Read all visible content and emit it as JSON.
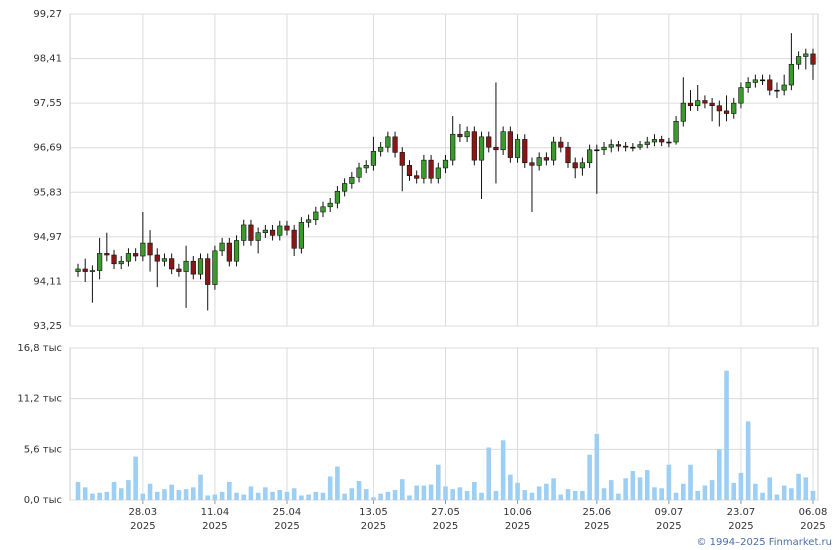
{
  "chart_data": {
    "type": "candlestick",
    "x": [
      "2025-03-17",
      "2025-03-18",
      "2025-03-19",
      "2025-03-20",
      "2025-03-21",
      "2025-03-24",
      "2025-03-25",
      "2025-03-26",
      "2025-03-27",
      "2025-03-28",
      "2025-03-31",
      "2025-04-01",
      "2025-04-02",
      "2025-04-03",
      "2025-04-04",
      "2025-04-07",
      "2025-04-08",
      "2025-04-09",
      "2025-04-10",
      "2025-04-11",
      "2025-04-14",
      "2025-04-15",
      "2025-04-16",
      "2025-04-17",
      "2025-04-18",
      "2025-04-21",
      "2025-04-22",
      "2025-04-23",
      "2025-04-24",
      "2025-04-25",
      "2025-04-28",
      "2025-04-29",
      "2025-04-30",
      "2025-05-01",
      "2025-05-02",
      "2025-05-05",
      "2025-05-06",
      "2025-05-07",
      "2025-05-08",
      "2025-05-09",
      "2025-05-12",
      "2025-05-13",
      "2025-05-14",
      "2025-05-15",
      "2025-05-16",
      "2025-05-19",
      "2025-05-20",
      "2025-05-21",
      "2025-05-22",
      "2025-05-23",
      "2025-05-26",
      "2025-05-27",
      "2025-05-28",
      "2025-05-29",
      "2025-05-30",
      "2025-06-02",
      "2025-06-03",
      "2025-06-04",
      "2025-06-05",
      "2025-06-06",
      "2025-06-09",
      "2025-06-10",
      "2025-06-11",
      "2025-06-12",
      "2025-06-13",
      "2025-06-16",
      "2025-06-17",
      "2025-06-18",
      "2025-06-19",
      "2025-06-20",
      "2025-06-23",
      "2025-06-24",
      "2025-06-25",
      "2025-06-26",
      "2025-06-27",
      "2025-06-30",
      "2025-07-01",
      "2025-07-02",
      "2025-07-03",
      "2025-07-04",
      "2025-07-07",
      "2025-07-08",
      "2025-07-09",
      "2025-07-10",
      "2025-07-11",
      "2025-07-14",
      "2025-07-15",
      "2025-07-16",
      "2025-07-17",
      "2025-07-18",
      "2025-07-21",
      "2025-07-22",
      "2025-07-23",
      "2025-07-24",
      "2025-07-25",
      "2025-07-28",
      "2025-07-29",
      "2025-07-30",
      "2025-07-31",
      "2025-08-01",
      "2025-08-04",
      "2025-08-05",
      "2025-08-06"
    ],
    "open": [
      94.3,
      94.35,
      94.3,
      94.32,
      94.65,
      94.62,
      94.45,
      94.5,
      94.65,
      94.6,
      94.85,
      94.62,
      94.5,
      94.55,
      94.35,
      94.3,
      94.5,
      94.25,
      94.55,
      94.05,
      94.7,
      94.85,
      94.5,
      94.9,
      95.2,
      94.9,
      95.05,
      95.1,
      95.0,
      95.18,
      95.1,
      94.75,
      95.25,
      95.3,
      95.45,
      95.55,
      95.62,
      95.85,
      96.0,
      96.12,
      96.3,
      96.35,
      96.62,
      96.7,
      96.9,
      96.6,
      96.35,
      96.15,
      96.1,
      96.45,
      96.1,
      96.3,
      96.45,
      96.95,
      96.9,
      97.0,
      96.45,
      96.9,
      96.7,
      96.65,
      97.0,
      96.5,
      96.85,
      96.4,
      96.35,
      96.5,
      96.45,
      96.8,
      96.7,
      96.4,
      96.3,
      96.4,
      96.65,
      96.65,
      96.7,
      96.75,
      96.72,
      96.7,
      96.7,
      96.75,
      96.8,
      96.85,
      96.8,
      96.8,
      97.2,
      97.55,
      97.5,
      97.6,
      97.55,
      97.5,
      97.4,
      97.35,
      97.55,
      97.85,
      97.95,
      98.0,
      98.0,
      97.8,
      97.8,
      97.9,
      98.3,
      98.45,
      98.5
    ],
    "high": [
      94.45,
      94.55,
      94.42,
      94.95,
      95.05,
      94.72,
      94.6,
      94.75,
      94.75,
      95.45,
      95.1,
      94.75,
      94.65,
      94.65,
      94.45,
      94.8,
      94.6,
      94.65,
      94.65,
      94.8,
      94.95,
      94.95,
      95.0,
      95.3,
      95.3,
      95.15,
      95.2,
      95.2,
      95.28,
      95.28,
      95.2,
      95.35,
      95.4,
      95.55,
      95.65,
      95.72,
      95.95,
      96.1,
      96.22,
      96.4,
      96.45,
      96.9,
      96.8,
      97.0,
      97.0,
      96.7,
      96.45,
      96.25,
      96.55,
      96.55,
      96.4,
      96.55,
      97.3,
      97.15,
      97.1,
      97.1,
      97.0,
      97.0,
      97.95,
      97.1,
      97.1,
      96.95,
      96.95,
      96.5,
      96.6,
      96.6,
      96.9,
      96.9,
      96.8,
      96.5,
      96.5,
      96.75,
      96.75,
      96.8,
      96.85,
      96.82,
      96.8,
      96.78,
      96.82,
      96.9,
      96.95,
      96.92,
      96.88,
      97.3,
      98.05,
      97.8,
      97.9,
      97.7,
      97.65,
      97.6,
      97.7,
      97.65,
      97.95,
      98.05,
      98.1,
      98.1,
      98.1,
      97.95,
      98.1,
      98.9,
      98.55,
      98.6,
      98.6
    ],
    "low": [
      94.2,
      94.1,
      93.7,
      94.15,
      94.5,
      94.35,
      94.35,
      94.4,
      94.5,
      94.5,
      94.3,
      94.0,
      94.4,
      94.25,
      94.2,
      93.6,
      94.15,
      94.15,
      93.55,
      93.95,
      94.6,
      94.4,
      94.4,
      94.8,
      94.8,
      94.65,
      94.95,
      94.9,
      94.9,
      95.0,
      94.6,
      94.65,
      95.15,
      95.2,
      95.35,
      95.45,
      95.52,
      95.75,
      95.9,
      96.02,
      96.2,
      96.25,
      96.52,
      96.6,
      96.5,
      95.85,
      96.05,
      96.0,
      96.0,
      96.0,
      96.0,
      96.2,
      96.35,
      96.8,
      96.8,
      96.35,
      95.7,
      96.6,
      96.0,
      96.55,
      96.4,
      96.4,
      96.3,
      95.45,
      96.25,
      96.35,
      96.35,
      96.6,
      96.3,
      96.1,
      96.15,
      96.3,
      95.8,
      96.55,
      96.6,
      96.62,
      96.62,
      96.62,
      96.65,
      96.68,
      96.72,
      96.72,
      96.7,
      96.75,
      97.1,
      97.4,
      97.4,
      97.45,
      97.2,
      97.1,
      97.2,
      97.25,
      97.45,
      97.75,
      97.85,
      97.9,
      97.7,
      97.65,
      97.7,
      97.8,
      98.2,
      98.2,
      98.0
    ],
    "close": [
      94.35,
      94.3,
      94.32,
      94.65,
      94.62,
      94.45,
      94.5,
      94.65,
      94.6,
      94.85,
      94.62,
      94.5,
      94.55,
      94.35,
      94.3,
      94.5,
      94.25,
      94.55,
      94.05,
      94.7,
      94.85,
      94.5,
      94.9,
      95.2,
      94.9,
      95.05,
      95.1,
      95.0,
      95.18,
      95.1,
      94.75,
      95.25,
      95.3,
      95.45,
      95.55,
      95.62,
      95.85,
      96.0,
      96.12,
      96.3,
      96.35,
      96.62,
      96.7,
      96.9,
      96.6,
      96.35,
      96.15,
      96.1,
      96.45,
      96.1,
      96.3,
      96.45,
      96.95,
      96.9,
      97.0,
      96.45,
      96.9,
      96.7,
      96.65,
      97.0,
      96.5,
      96.85,
      96.4,
      96.35,
      96.5,
      96.45,
      96.8,
      96.7,
      96.4,
      96.3,
      96.4,
      96.65,
      96.65,
      96.7,
      96.75,
      96.72,
      96.7,
      96.7,
      96.75,
      96.8,
      96.85,
      96.8,
      96.8,
      97.2,
      97.55,
      97.5,
      97.6,
      97.55,
      97.5,
      97.4,
      97.35,
      97.55,
      97.85,
      97.95,
      98.0,
      98.0,
      97.8,
      97.8,
      97.9,
      98.3,
      98.45,
      98.5,
      98.3
    ],
    "volume": [
      2.0,
      1.4,
      0.7,
      0.8,
      0.9,
      2.0,
      1.3,
      2.2,
      4.8,
      0.7,
      1.8,
      0.9,
      1.2,
      1.7,
      1.1,
      1.2,
      1.4,
      2.8,
      0.5,
      0.6,
      0.9,
      2.0,
      0.8,
      0.6,
      1.5,
      0.8,
      1.4,
      0.9,
      1.1,
      0.9,
      1.3,
      0.5,
      0.6,
      0.9,
      0.8,
      2.6,
      3.7,
      0.7,
      1.3,
      2.1,
      1.2,
      0.3,
      0.7,
      0.9,
      1.1,
      2.3,
      0.5,
      1.6,
      1.6,
      1.7,
      3.9,
      1.5,
      1.2,
      1.4,
      1.0,
      2.0,
      0.8,
      5.8,
      1.0,
      6.6,
      2.8,
      1.9,
      1.1,
      0.8,
      1.5,
      1.8,
      2.4,
      0.6,
      1.2,
      1.0,
      1.0,
      5.0,
      7.3,
      1.3,
      2.2,
      0.7,
      2.4,
      3.2,
      2.5,
      3.3,
      1.4,
      1.3,
      3.9,
      0.8,
      1.8,
      3.9,
      1.0,
      1.6,
      2.2,
      5.6,
      14.3,
      1.9,
      3.0,
      8.7,
      1.8,
      0.8,
      2.5,
      0.6,
      1.6,
      1.3,
      2.9,
      2.5,
      1.0
    ],
    "up_color": "#3a9a2c",
    "down_color": "#8b1616",
    "volume_color": "#9dcff4",
    "ylim": [
      93.25,
      99.27
    ],
    "yticks": [
      {
        "value": 93.25,
        "label": "93,25"
      },
      {
        "value": 94.11,
        "label": "94,11"
      },
      {
        "value": 94.97,
        "label": "94,97"
      },
      {
        "value": 95.83,
        "label": "95,83"
      },
      {
        "value": 96.69,
        "label": "96,69"
      },
      {
        "value": 97.55,
        "label": "97,55"
      },
      {
        "value": 98.41,
        "label": "98,41"
      },
      {
        "value": 99.27,
        "label": "99,27"
      }
    ],
    "volume_lim": [
      0,
      16.8
    ],
    "volume_ticks": [
      {
        "value": 0,
        "label": "0,0 тыс"
      },
      {
        "value": 5.6,
        "label": "5,6 тыс"
      },
      {
        "value": 11.2,
        "label": "11,2 тыс"
      },
      {
        "value": 16.8,
        "label": "16,8 тыс"
      }
    ],
    "xticks": [
      {
        "value": "2025-03-28",
        "label": [
          "28.03",
          "2025"
        ]
      },
      {
        "value": "2025-04-11",
        "label": [
          "11.04",
          "2025"
        ]
      },
      {
        "value": "2025-04-25",
        "label": [
          "25.04",
          "2025"
        ]
      },
      {
        "value": "2025-05-13",
        "label": [
          "13.05",
          "2025"
        ]
      },
      {
        "value": "2025-05-27",
        "label": [
          "27.05",
          "2025"
        ]
      },
      {
        "value": "2025-06-10",
        "label": [
          "10.06",
          "2025"
        ]
      },
      {
        "value": "2025-06-25",
        "label": [
          "25.06",
          "2025"
        ]
      },
      {
        "value": "2025-07-09",
        "label": [
          "09.07",
          "2025"
        ]
      },
      {
        "value": "2025-07-23",
        "label": [
          "23.07",
          "2025"
        ]
      },
      {
        "value": "2025-08-06",
        "label": [
          "06.08",
          "2025"
        ]
      }
    ],
    "grid": true
  },
  "footer": "© 1994–2025 Finmarket.ru"
}
